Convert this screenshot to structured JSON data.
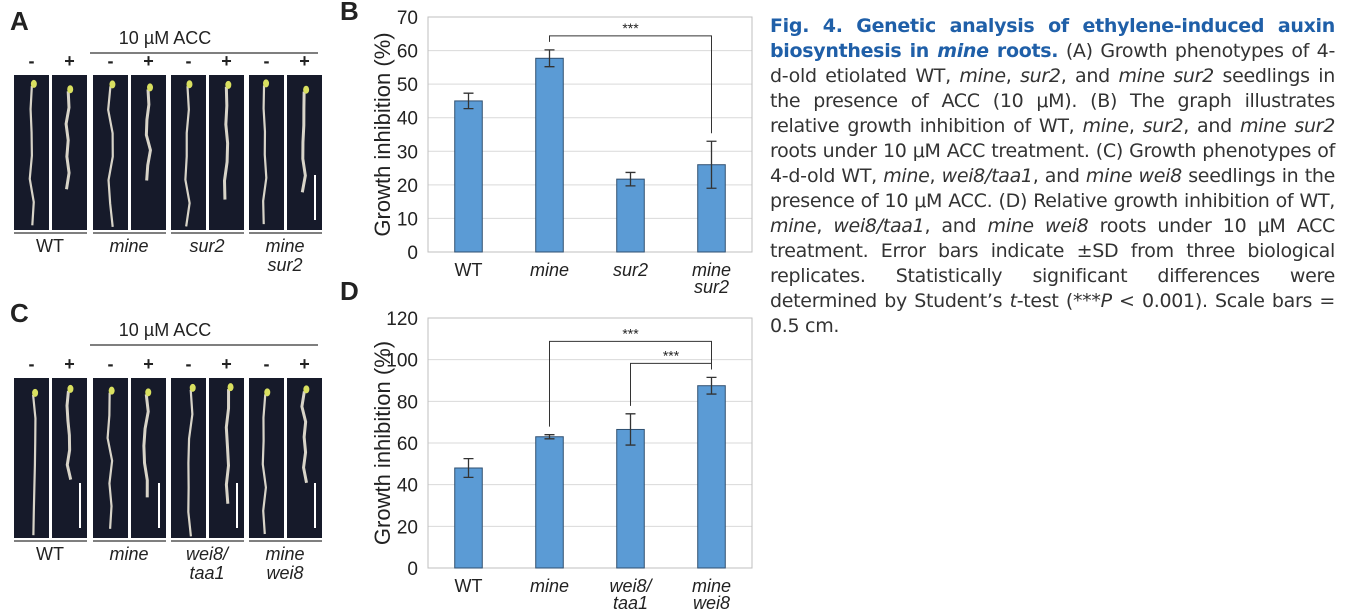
{
  "photo_panels": [
    {
      "letter": "A",
      "treatment": "10 µM ACC",
      "signs": [
        "-",
        "+"
      ],
      "genotypes": [
        [
          "WT"
        ],
        [
          "mine"
        ],
        [
          "sur2"
        ],
        [
          "mine",
          "sur2"
        ]
      ],
      "genotype_italic": [
        false,
        true,
        true,
        true
      ]
    },
    {
      "letter": "C",
      "treatment": "10 µM ACC",
      "signs": [
        "-",
        "+"
      ],
      "genotypes": [
        [
          "WT"
        ],
        [
          "mine"
        ],
        [
          "wei8/",
          "taa1"
        ],
        [
          "mine",
          "wei8"
        ]
      ],
      "genotype_italic": [
        false,
        true,
        true,
        true
      ]
    }
  ],
  "chart_data": [
    {
      "type": "bar",
      "panel": "B",
      "categories": [
        [
          "WT"
        ],
        [
          "mine"
        ],
        [
          "sur2"
        ],
        [
          "mine",
          "sur2"
        ]
      ],
      "category_italic": [
        false,
        true,
        true,
        true
      ],
      "values": [
        45,
        57.7,
        21.7,
        26
      ],
      "errors": [
        2.3,
        2.5,
        2,
        7
      ],
      "ylabel": "Growth inhibition (%)",
      "ylim": [
        0,
        70
      ],
      "yticks": [
        0,
        10,
        20,
        30,
        40,
        50,
        60,
        70
      ],
      "grid": true,
      "color": "#5b9bd5",
      "annotations": [
        {
          "label": "***",
          "from": 1,
          "to": 3
        }
      ]
    },
    {
      "type": "bar",
      "panel": "D",
      "categories": [
        [
          "WT"
        ],
        [
          "mine"
        ],
        [
          "wei8/",
          "taa1"
        ],
        [
          "mine",
          "wei8"
        ]
      ],
      "category_italic": [
        false,
        true,
        true,
        true
      ],
      "values": [
        48,
        63,
        66.5,
        87.5
      ],
      "errors": [
        4.5,
        1,
        7.5,
        4
      ],
      "ylabel": "Growth inhibition (%)",
      "ylim": [
        0,
        120
      ],
      "yticks": [
        0,
        20,
        40,
        60,
        80,
        100,
        120
      ],
      "grid": true,
      "color": "#5b9bd5",
      "annotations": [
        {
          "label": "***",
          "from": 2,
          "to": 3
        },
        {
          "label": "***",
          "from": 1,
          "to": 3
        }
      ]
    }
  ],
  "caption": {
    "title": [
      {
        "text": "Fig. 4. Genetic analysis of ethylene-induced auxin biosynthesis in ",
        "italic": false
      },
      {
        "text": "mine",
        "italic": true
      },
      {
        "text": " roots.",
        "italic": false
      }
    ],
    "body": [
      {
        "text": " (A) Growth phenotypes of 4-d-old etiolated WT, ",
        "italic": false
      },
      {
        "text": "mine",
        "italic": true
      },
      {
        "text": ", ",
        "italic": false
      },
      {
        "text": "sur2",
        "italic": true
      },
      {
        "text": ", and ",
        "italic": false
      },
      {
        "text": "mine sur2",
        "italic": true
      },
      {
        "text": " seedlings in the presence of ACC (10 μM). (B) The graph illustrates relative growth inhibition of WT, ",
        "italic": false
      },
      {
        "text": "mine",
        "italic": true
      },
      {
        "text": ", ",
        "italic": false
      },
      {
        "text": "sur2",
        "italic": true
      },
      {
        "text": ", and ",
        "italic": false
      },
      {
        "text": "mine sur2",
        "italic": true
      },
      {
        "text": " roots under 10 μM ACC treatment. (C) Growth phenotypes of 4-d-old WT, ",
        "italic": false
      },
      {
        "text": "mine",
        "italic": true
      },
      {
        "text": ", ",
        "italic": false
      },
      {
        "text": "wei8/taa1",
        "italic": true
      },
      {
        "text": ", and ",
        "italic": false
      },
      {
        "text": "mine wei8",
        "italic": true
      },
      {
        "text": " seedlings in the presence of 10 μM ACC. (D) Relative growth inhibition of WT, ",
        "italic": false
      },
      {
        "text": "mine",
        "italic": true
      },
      {
        "text": ", ",
        "italic": false
      },
      {
        "text": "wei8/taa1",
        "italic": true
      },
      {
        "text": ", and ",
        "italic": false
      },
      {
        "text": "mine wei8",
        "italic": true
      },
      {
        "text": " roots under 10 μM ACC treatment. Error bars indicate ±SD from three biological replicates. Statistically significant differences were determined by Student’s ",
        "italic": false
      },
      {
        "text": "t",
        "italic": true
      },
      {
        "text": "-test (***",
        "italic": false
      },
      {
        "text": "P",
        "italic": true
      },
      {
        "text": " < 0.001). Scale bars = 0.5 cm.",
        "italic": false
      }
    ]
  }
}
